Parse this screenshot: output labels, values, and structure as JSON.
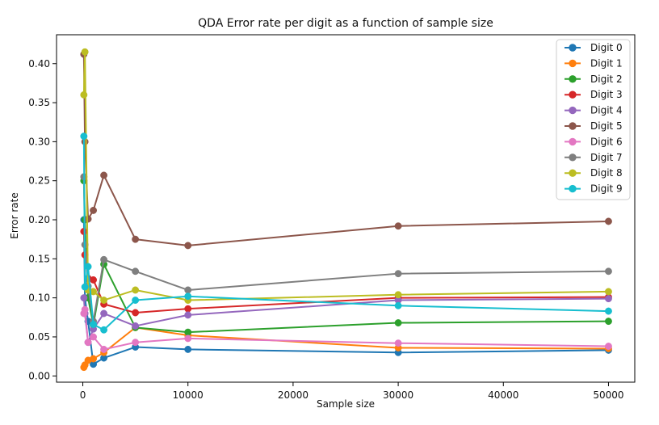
{
  "chart_data": {
    "type": "line",
    "title": "QDA Error rate per digit as a function of sample size",
    "xlabel": "Sample size",
    "ylabel": "Error rate",
    "xlim": [
      -2500,
      52500
    ],
    "ylim": [
      -0.008,
      0.437
    ],
    "x_ticks": [
      0,
      10000,
      20000,
      30000,
      40000,
      50000
    ],
    "x_tick_labels": [
      "0",
      "10000",
      "20000",
      "30000",
      "40000",
      "50000"
    ],
    "y_ticks": [
      0.0,
      0.05,
      0.1,
      0.15,
      0.2,
      0.25,
      0.3,
      0.35,
      0.4
    ],
    "y_tick_labels": [
      "0.00",
      "0.05",
      "0.10",
      "0.15",
      "0.20",
      "0.25",
      "0.30",
      "0.35",
      "0.40"
    ],
    "legend_position": "top-right",
    "grid": false,
    "x": [
      100,
      200,
      500,
      1000,
      2000,
      5000,
      10000,
      30000,
      50000
    ],
    "series": [
      {
        "name": "Digit 0",
        "color": "#1f77b4",
        "values": [
          0.2,
          0.1,
          0.07,
          0.015,
          0.023,
          0.037,
          0.034,
          0.03,
          0.033
        ]
      },
      {
        "name": "Digit 1",
        "color": "#ff7f0e",
        "values": [
          0.011,
          0.014,
          0.02,
          0.022,
          0.03,
          0.062,
          0.052,
          0.036,
          0.035
        ]
      },
      {
        "name": "Digit 2",
        "color": "#2ca02c",
        "values": [
          0.25,
          0.2,
          0.1,
          0.065,
          0.143,
          0.062,
          0.056,
          0.068,
          0.07
        ]
      },
      {
        "name": "Digit 3",
        "color": "#d62728",
        "values": [
          0.185,
          0.155,
          0.125,
          0.123,
          0.092,
          0.081,
          0.086,
          0.1,
          0.101
        ]
      },
      {
        "name": "Digit 4",
        "color": "#9467bd",
        "values": [
          0.1,
          0.08,
          0.043,
          0.06,
          0.08,
          0.064,
          0.078,
          0.097,
          0.099
        ]
      },
      {
        "name": "Digit 5",
        "color": "#8c564b",
        "values": [
          0.412,
          0.3,
          0.201,
          0.212,
          0.257,
          0.175,
          0.167,
          0.192,
          0.198
        ]
      },
      {
        "name": "Digit 6",
        "color": "#e377c2",
        "values": [
          0.08,
          0.085,
          0.043,
          0.05,
          0.034,
          0.043,
          0.048,
          0.042,
          0.038
        ]
      },
      {
        "name": "Digit 7",
        "color": "#7f7f7f",
        "values": [
          0.255,
          0.168,
          0.115,
          0.07,
          0.149,
          0.134,
          0.11,
          0.131,
          0.134
        ]
      },
      {
        "name": "Digit 8",
        "color": "#bcbd22",
        "values": [
          0.36,
          0.415,
          0.11,
          0.108,
          0.097,
          0.11,
          0.097,
          0.104,
          0.108
        ]
      },
      {
        "name": "Digit 9",
        "color": "#17becf",
        "values": [
          0.307,
          0.114,
          0.14,
          0.066,
          0.059,
          0.097,
          0.102,
          0.09,
          0.083
        ]
      }
    ]
  }
}
